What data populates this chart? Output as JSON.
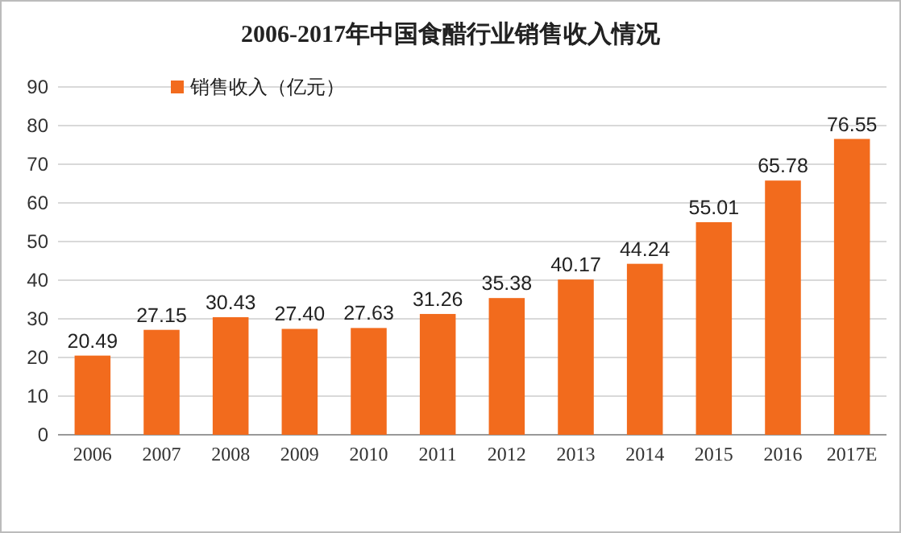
{
  "chart_data": {
    "type": "bar",
    "title": "2006-2017年中国食醋行业销售收入情况",
    "categories": [
      "2006",
      "2007",
      "2008",
      "2009",
      "2010",
      "2011",
      "2012",
      "2013",
      "2014",
      "2015",
      "2016",
      "2017E"
    ],
    "series": [
      {
        "name": "销售收入（亿元）",
        "color": "#f26b1d",
        "values": [
          20.49,
          27.15,
          30.43,
          27.4,
          27.63,
          31.26,
          35.38,
          40.17,
          44.24,
          55.01,
          65.78,
          76.55
        ],
        "value_labels": [
          "20.49",
          "27.15",
          "30.43",
          "27.40",
          "27.63",
          "31.26",
          "35.38",
          "40.17",
          "44.24",
          "55.01",
          "65.78",
          "76.55"
        ]
      }
    ],
    "ylim": [
      0,
      90
    ],
    "yticks": [
      0,
      10,
      20,
      30,
      40,
      50,
      60,
      70,
      80,
      90
    ],
    "grid": "y",
    "legend": "top left"
  }
}
